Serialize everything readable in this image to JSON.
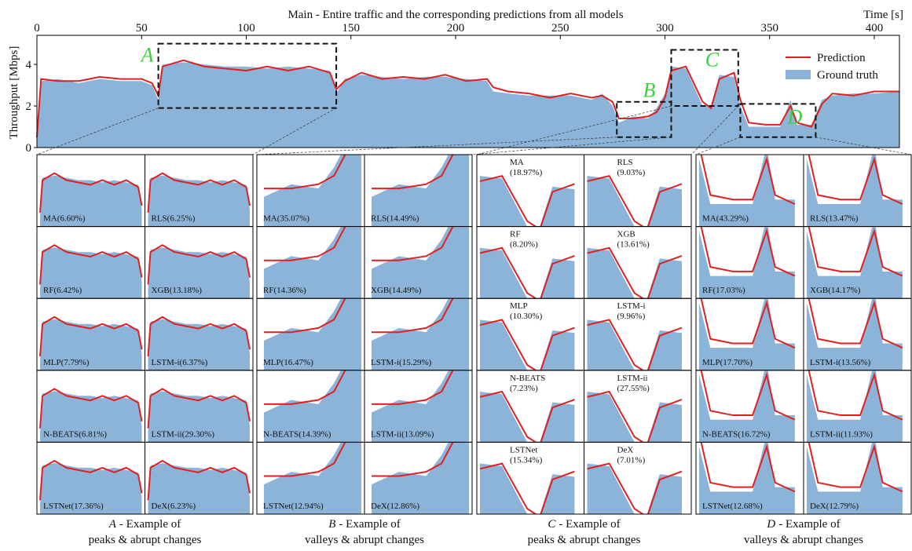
{
  "chart_data": {
    "type": "area-line",
    "title": "Main - Entire traffic and the corresponding predictions from all models",
    "x_label": "Time [s]",
    "y_label": "Throughput [Mbps]",
    "xlim": [
      0,
      412
    ],
    "xticks": [
      0,
      50,
      100,
      150,
      200,
      250,
      300,
      350,
      400
    ],
    "ylim": [
      0,
      5.4
    ],
    "yticks": [
      0,
      2,
      4
    ],
    "legend_position": "upper right",
    "x": [
      0,
      2,
      10,
      20,
      30,
      40,
      50,
      55,
      58,
      60,
      70,
      80,
      90,
      100,
      110,
      120,
      130,
      140,
      143,
      147,
      155,
      165,
      175,
      185,
      195,
      205,
      215,
      218,
      225,
      235,
      245,
      255,
      265,
      270,
      275,
      278,
      285,
      292,
      296,
      300,
      303,
      310,
      318,
      322,
      326,
      333,
      336,
      340,
      348,
      355,
      360,
      363,
      370,
      375,
      380,
      390,
      400,
      412
    ],
    "series": [
      {
        "name": "Ground truth",
        "color": "#8cb4d8",
        "values": [
          0.3,
          3.2,
          3.3,
          3.1,
          3.3,
          3.2,
          3.2,
          3.0,
          2.3,
          4.0,
          4.1,
          4.0,
          3.9,
          3.9,
          3.8,
          3.9,
          3.8,
          3.7,
          2.6,
          3.3,
          3.5,
          3.4,
          3.3,
          3.4,
          3.4,
          3.3,
          3.2,
          2.7,
          2.6,
          2.5,
          2.5,
          2.5,
          2.3,
          2.6,
          2.0,
          1.2,
          1.5,
          1.4,
          1.9,
          2.6,
          3.9,
          3.8,
          2.0,
          2.0,
          3.5,
          3.4,
          2.0,
          1.0,
          1.0,
          1.0,
          2.3,
          1.1,
          1.1,
          2.3,
          2.5,
          2.6,
          2.6,
          2.7
        ]
      },
      {
        "name": "Prediction",
        "color": "#e02020",
        "values": [
          0.5,
          3.3,
          3.2,
          3.2,
          3.4,
          3.3,
          3.3,
          3.1,
          2.5,
          3.9,
          4.2,
          3.9,
          3.8,
          3.7,
          3.9,
          3.7,
          3.9,
          3.6,
          2.8,
          3.2,
          3.6,
          3.3,
          3.4,
          3.3,
          3.5,
          3.2,
          3.3,
          2.9,
          2.7,
          2.6,
          2.4,
          2.6,
          2.4,
          2.5,
          2.2,
          1.4,
          1.4,
          1.5,
          1.7,
          2.4,
          3.7,
          3.9,
          2.2,
          1.9,
          3.3,
          3.6,
          2.3,
          1.2,
          1.1,
          1.1,
          2.0,
          1.2,
          1.0,
          2.1,
          2.6,
          2.5,
          2.7,
          2.7
        ]
      }
    ],
    "regions": [
      {
        "label": "A",
        "xlim": [
          58,
          143
        ],
        "ylim": [
          1.9,
          5.0
        ]
      },
      {
        "label": "B",
        "xlim": [
          277,
          303
        ],
        "ylim": [
          0.5,
          2.2
        ]
      },
      {
        "label": "C",
        "xlim": [
          303,
          335
        ],
        "ylim": [
          2.0,
          4.7
        ]
      },
      {
        "label": "D",
        "xlim": [
          336,
          372
        ],
        "ylim": [
          0.5,
          2.1
        ]
      }
    ],
    "groups": [
      {
        "caption": [
          "- Example of",
          "peaks & abrupt changes"
        ],
        "models": [
          "MA(6.60%)",
          "RLS(6.25%)",
          "RF(6.42%)",
          "XGB(13.18%)",
          "MLP(7.79%)",
          "LSTM-i(6.37%)",
          "N-BEATS(6.81%)",
          "LSTM-ii(29.30%)",
          "LSTNet(17.36%)",
          "DeX(6.23%)"
        ]
      },
      {
        "caption": [
          "- Example of",
          "valleys & abrupt changes"
        ],
        "models": [
          "MA(35.07%)",
          "RLS(14.49%)",
          "RF(14.36%)",
          "XGB(14.49%)",
          "MLP(16.47%)",
          "LSTM-i(15.29%)",
          "N-BEATS(14.39%)",
          "LSTM-ii(13.09%)",
          "LSTNet(12.94%)",
          "DeX(12.86%)"
        ]
      },
      {
        "caption": [
          "- Example of",
          "peaks & abrupt changes"
        ],
        "models": [
          [
            "MA",
            "(18.97%)"
          ],
          [
            "RLS",
            "(9.03%)"
          ],
          [
            "RF",
            "(8.20%)"
          ],
          [
            "XGB",
            "(13.61%)"
          ],
          [
            "MLP",
            "(10.30%)"
          ],
          [
            "LSTM-i",
            "(9.96%)"
          ],
          [
            "N-BEATS",
            "(7.23%)"
          ],
          [
            "LSTM-ii",
            "(27.55%)"
          ],
          [
            "LSTNet",
            "(15.34%)"
          ],
          [
            "DeX",
            "(7.01%)"
          ]
        ]
      },
      {
        "caption": [
          "- Example of",
          "valleys & abrupt changes"
        ],
        "models": [
          "MA(43.29%)",
          "RLS(13.47%)",
          "RF(17.03%)",
          "XGB(14.17%)",
          "MLP(17.70%)",
          "LSTM-i(13.56%)",
          "N-BEATS(16.72%)",
          "LSTM-ii(11.93%)",
          "LSTNet(12.68%)",
          "DeX(12.79%)"
        ]
      }
    ]
  }
}
